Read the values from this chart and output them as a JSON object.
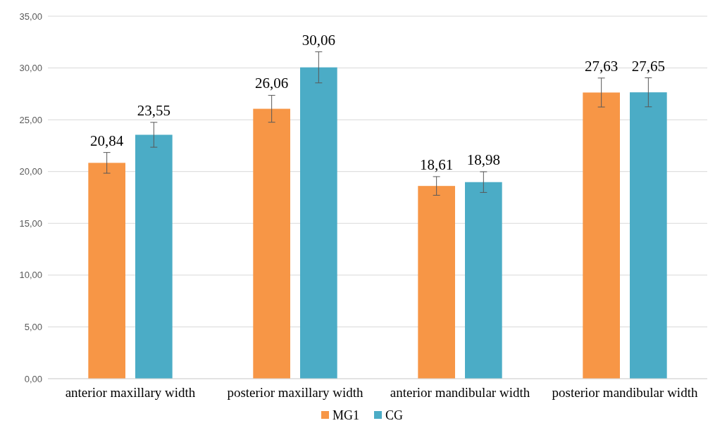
{
  "chart_data": {
    "type": "bar",
    "categories": [
      "anterior maxillary width",
      "posterior maxillary width",
      "anterior mandibular width",
      "posterior mandibular width"
    ],
    "series": [
      {
        "name": "MG1",
        "color": "#f79646",
        "values": [
          20.84,
          26.06,
          18.61,
          27.63
        ],
        "errors": [
          1.0,
          1.3,
          0.9,
          1.4
        ],
        "value_labels": [
          "20,84",
          "26,06",
          "18,61",
          "27,63"
        ]
      },
      {
        "name": "CG",
        "color": "#4bacc6",
        "values": [
          23.55,
          30.06,
          18.98,
          27.65
        ],
        "errors": [
          1.2,
          1.5,
          1.0,
          1.4
        ],
        "value_labels": [
          "23,55",
          "30,06",
          "18,98",
          "27,65"
        ]
      }
    ],
    "ylim": [
      0,
      35
    ],
    "yticks": [
      {
        "value": 0,
        "label": "0,00"
      },
      {
        "value": 5,
        "label": "5,00"
      },
      {
        "value": 10,
        "label": "10,00"
      },
      {
        "value": 15,
        "label": "15,00"
      },
      {
        "value": 20,
        "label": "20,00"
      },
      {
        "value": 25,
        "label": "25,00"
      },
      {
        "value": 30,
        "label": "30,00"
      },
      {
        "value": 35,
        "label": "35,00"
      }
    ],
    "grid": "y",
    "legend": "bottom"
  }
}
